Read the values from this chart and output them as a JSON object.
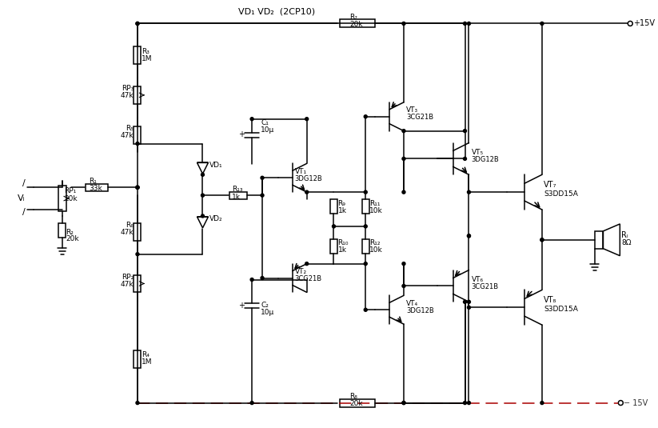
{
  "bg_color": "#ffffff",
  "line_color": "#000000",
  "title": "VD₁ VD₂  (2CP10)",
  "power_pos": "+15V",
  "power_neg": "− 15V",
  "components": {
    "R1": "33k",
    "R2": "20k",
    "R3": "1M",
    "R4": "1M",
    "R5": "47k",
    "R6": "47k",
    "R7": "20k",
    "R8": "20k",
    "R9": "1k",
    "R10": "1k",
    "R11": "10k",
    "R12": "10k",
    "R13": "1k",
    "RP1": "20k",
    "RP2": "47k",
    "RP3": "47k",
    "RL": "8Ω",
    "C1": "10μ",
    "C2": "10μ",
    "VT1": "3DG12B",
    "VT2": "3CG21B",
    "VT3": "3CG21B",
    "VT4": "3DG12B",
    "VT5": "3DG12B",
    "VT6": "3CG21B",
    "VT7": "S3DD15A",
    "VT8": "S3DD15A"
  }
}
